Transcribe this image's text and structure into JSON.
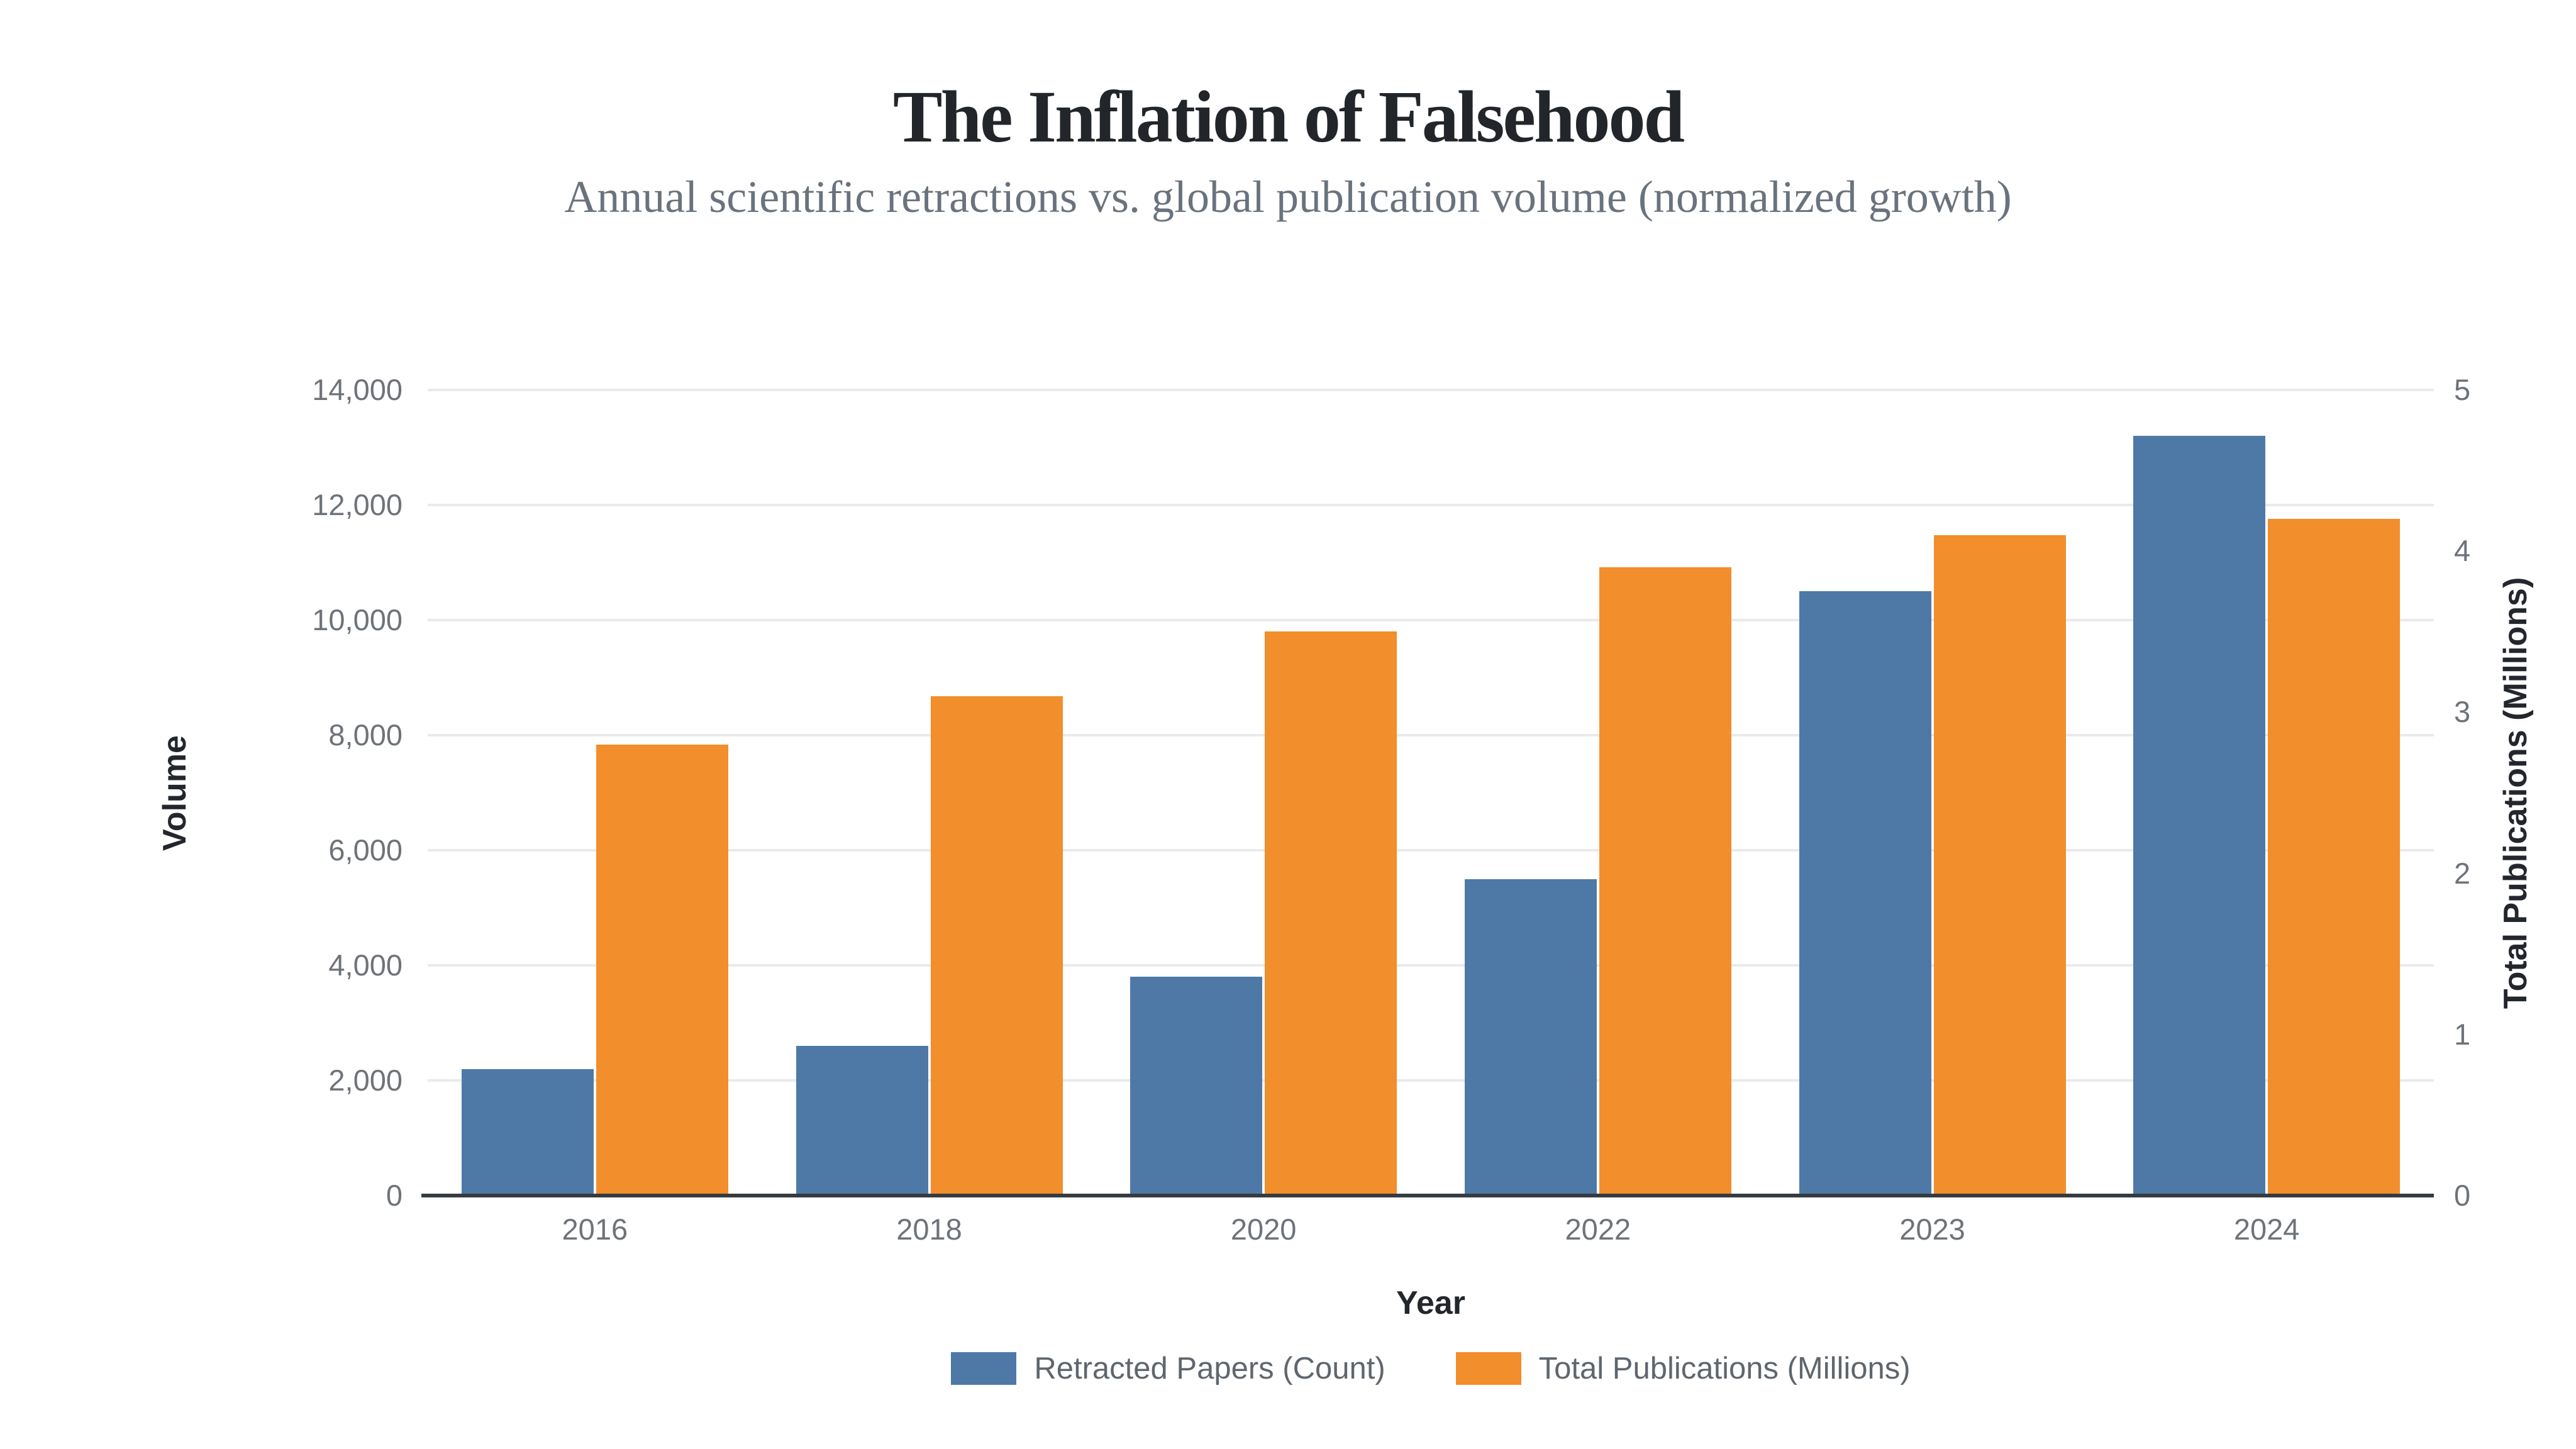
{
  "chart_data": {
    "type": "bar",
    "title": "The Inflation of Falsehood",
    "subtitle": "Annual scientific retractions vs. global publication volume (normalized growth)",
    "categories": [
      "2016",
      "2018",
      "2020",
      "2022",
      "2023",
      "2024"
    ],
    "series": [
      {
        "name": "Retracted Papers (Count)",
        "axis": "left",
        "color": "#4E79A7",
        "values": [
          2200,
          2600,
          3800,
          5500,
          10500,
          13200
        ]
      },
      {
        "name": "Total Publications (Millions)",
        "axis": "right",
        "color": "#F28E2B",
        "values": [
          2.8,
          3.1,
          3.5,
          3.9,
          4.1,
          4.2
        ]
      }
    ],
    "xlabel": "Year",
    "ylabel_left": "Volume",
    "ylabel_right": "Total Publications (Millions)",
    "y_left": {
      "min": 0,
      "max": 14000,
      "step": 2000
    },
    "y_right": {
      "min": 0,
      "max": 5,
      "step": 1
    },
    "y_left_ticks": [
      "0",
      "2,000",
      "4,000",
      "6,000",
      "8,000",
      "10,000",
      "12,000",
      "14,000"
    ],
    "y_right_ticks": [
      "0",
      "1",
      "2",
      "3",
      "4",
      "5"
    ],
    "legend_position": "bottom",
    "grid": "horizontal",
    "background": "#ffffff",
    "gridline_color": "#e8eaee",
    "axis_line_color": "#353b41"
  }
}
